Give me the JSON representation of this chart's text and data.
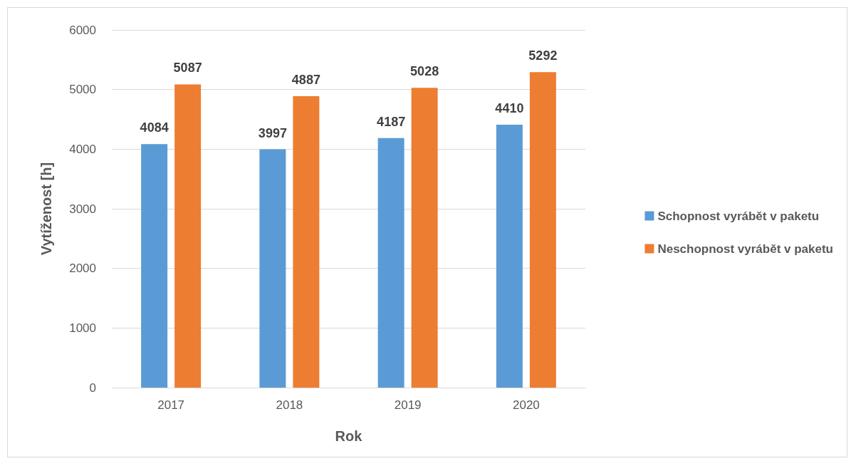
{
  "chart_data": {
    "type": "bar",
    "xlabel": "Rok",
    "ylabel": "Vytíženost [h]",
    "categories": [
      "2017",
      "2018",
      "2019",
      "2020"
    ],
    "series": [
      {
        "name": "Schopnost vyrábět v paketu",
        "color": "#5b9bd5",
        "values": [
          4084,
          3997,
          4187,
          4410
        ]
      },
      {
        "name": "Neschopnost vyrábět v paketu",
        "color": "#ed7d31",
        "values": [
          5087,
          4887,
          5028,
          5292
        ]
      }
    ],
    "ylim": [
      0,
      6000
    ],
    "yticks": [
      0,
      1000,
      2000,
      3000,
      4000,
      5000,
      6000
    ],
    "grid": "y",
    "legend": "right",
    "data_labels": true
  }
}
